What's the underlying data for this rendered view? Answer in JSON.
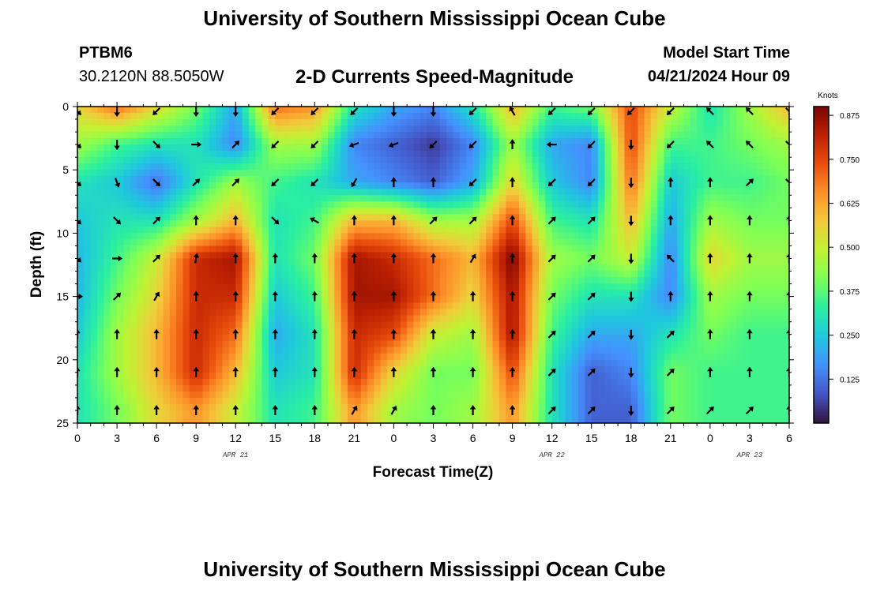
{
  "header": {
    "title": "University of Southern Mississippi Ocean Cube",
    "station_id": "PTBM6",
    "station_coords": "30.2120N  88.5050W",
    "subtitle": "2-D Currents Speed-Magnitude",
    "model_start_label": "Model Start Time",
    "model_start_value": "04/21/2024 Hour 09"
  },
  "footer": {
    "title": "University of Southern Mississippi Ocean Cube"
  },
  "chart_data": {
    "type": "heatmap",
    "title": "2-D Currents Speed-Magnitude",
    "xlabel": "Forecast Time(Z)",
    "ylabel": "Depth (ft)",
    "x_hours_range": [
      0,
      54
    ],
    "x_ticks": [
      {
        "hour": 0,
        "label": "0"
      },
      {
        "hour": 3,
        "label": "3"
      },
      {
        "hour": 6,
        "label": "6"
      },
      {
        "hour": 9,
        "label": "9"
      },
      {
        "hour": 12,
        "label": "12"
      },
      {
        "hour": 15,
        "label": "15"
      },
      {
        "hour": 18,
        "label": "18"
      },
      {
        "hour": 21,
        "label": "21"
      },
      {
        "hour": 24,
        "label": "0"
      },
      {
        "hour": 27,
        "label": "3"
      },
      {
        "hour": 30,
        "label": "6"
      },
      {
        "hour": 33,
        "label": "9"
      },
      {
        "hour": 36,
        "label": "12"
      },
      {
        "hour": 39,
        "label": "15"
      },
      {
        "hour": 42,
        "label": "18"
      },
      {
        "hour": 45,
        "label": "21"
      },
      {
        "hour": 48,
        "label": "0"
      },
      {
        "hour": 51,
        "label": "3"
      },
      {
        "hour": 54,
        "label": "6"
      }
    ],
    "date_labels": [
      {
        "hour": 12,
        "label": "APR 21"
      },
      {
        "hour": 36,
        "label": "APR 22"
      },
      {
        "hour": 51,
        "label": "APR 23"
      }
    ],
    "y_range": [
      0,
      25
    ],
    "y_ticks": [
      0,
      5,
      10,
      15,
      20,
      25
    ],
    "colorbar": {
      "label": "Knots",
      "range": [
        0,
        0.9
      ],
      "ticks": [
        "0.875",
        "0.750",
        "0.625",
        "0.500",
        "0.375",
        "0.250",
        "0.125"
      ],
      "tick_values": [
        0.875,
        0.75,
        0.625,
        0.5,
        0.375,
        0.25,
        0.125
      ],
      "colormap": [
        "#30123b",
        "#4454c4",
        "#4490fe",
        "#1fc8de",
        "#29efa2",
        "#7dff56",
        "#c1f334",
        "#f1ca3a",
        "#fe922a",
        "#ea4f0d",
        "#be2102",
        "#7a0403"
      ]
    },
    "arrow_depths": [
      0,
      3,
      6,
      9,
      12,
      15,
      18,
      21,
      24
    ],
    "arrow_hours": [
      0,
      3,
      6,
      9,
      12,
      15,
      18,
      21,
      24,
      27,
      30,
      33,
      36,
      39,
      42,
      45,
      48,
      51,
      54
    ],
    "speed_field": [
      {
        "hour": 0,
        "speeds_by_depth": [
          0.55,
          0.45,
          0.3,
          0.25,
          0.22,
          0.22,
          0.25,
          0.3,
          0.3
        ]
      },
      {
        "hour": 3,
        "speeds_by_depth": [
          0.7,
          0.35,
          0.25,
          0.3,
          0.35,
          0.4,
          0.45,
          0.45,
          0.4
        ]
      },
      {
        "hour": 6,
        "speeds_by_depth": [
          0.55,
          0.3,
          0.12,
          0.3,
          0.5,
          0.55,
          0.6,
          0.6,
          0.55
        ]
      },
      {
        "hour": 9,
        "speeds_by_depth": [
          0.4,
          0.3,
          0.3,
          0.45,
          0.8,
          0.8,
          0.8,
          0.8,
          0.65
        ]
      },
      {
        "hour": 12,
        "speeds_by_depth": [
          0.2,
          0.15,
          0.45,
          0.6,
          0.85,
          0.8,
          0.7,
          0.6,
          0.5
        ]
      },
      {
        "hour": 15,
        "speeds_by_depth": [
          0.7,
          0.45,
          0.35,
          0.3,
          0.3,
          0.25,
          0.2,
          0.25,
          0.3
        ]
      },
      {
        "hour": 18,
        "speeds_by_depth": [
          0.65,
          0.45,
          0.3,
          0.35,
          0.4,
          0.35,
          0.3,
          0.3,
          0.35
        ]
      },
      {
        "hour": 21,
        "speeds_by_depth": [
          0.3,
          0.15,
          0.2,
          0.6,
          0.85,
          0.85,
          0.8,
          0.8,
          0.65
        ]
      },
      {
        "hour": 24,
        "speeds_by_depth": [
          0.2,
          0.1,
          0.15,
          0.6,
          0.8,
          0.85,
          0.75,
          0.55,
          0.45
        ]
      },
      {
        "hour": 27,
        "speeds_by_depth": [
          0.15,
          0.05,
          0.1,
          0.45,
          0.7,
          0.7,
          0.5,
          0.4,
          0.4
        ]
      },
      {
        "hour": 30,
        "speeds_by_depth": [
          0.3,
          0.15,
          0.2,
          0.45,
          0.6,
          0.55,
          0.45,
          0.4,
          0.45
        ]
      },
      {
        "hour": 33,
        "speeds_by_depth": [
          0.6,
          0.45,
          0.55,
          0.75,
          0.9,
          0.85,
          0.85,
          0.75,
          0.65
        ]
      },
      {
        "hour": 36,
        "speeds_by_depth": [
          0.35,
          0.2,
          0.25,
          0.35,
          0.45,
          0.4,
          0.35,
          0.3,
          0.3
        ]
      },
      {
        "hour": 39,
        "speeds_by_depth": [
          0.4,
          0.15,
          0.15,
          0.3,
          0.4,
          0.3,
          0.2,
          0.1,
          0.1
        ]
      },
      {
        "hour": 42,
        "speeds_by_depth": [
          0.75,
          0.75,
          0.7,
          0.6,
          0.5,
          0.3,
          0.2,
          0.15,
          0.1
        ]
      },
      {
        "hour": 45,
        "speeds_by_depth": [
          0.5,
          0.35,
          0.25,
          0.2,
          0.15,
          0.15,
          0.3,
          0.4,
          0.4
        ]
      },
      {
        "hour": 48,
        "speeds_by_depth": [
          0.3,
          0.35,
          0.35,
          0.45,
          0.55,
          0.45,
          0.4,
          0.35,
          0.35
        ]
      },
      {
        "hour": 51,
        "speeds_by_depth": [
          0.45,
          0.4,
          0.35,
          0.4,
          0.45,
          0.4,
          0.35,
          0.35,
          0.35
        ]
      },
      {
        "hour": 54,
        "speeds_by_depth": [
          0.6,
          0.45,
          0.4,
          0.4,
          0.45,
          0.4,
          0.35,
          0.35,
          0.35
        ]
      }
    ],
    "direction_field": [
      {
        "hour": 0,
        "dirs_by_depth": [
          135,
          135,
          135,
          135,
          135,
          90,
          0,
          0,
          0
        ]
      },
      {
        "hour": 3,
        "dirs_by_depth": [
          180,
          180,
          160,
          135,
          90,
          45,
          0,
          0,
          0
        ]
      },
      {
        "hour": 6,
        "dirs_by_depth": [
          225,
          135,
          135,
          45,
          45,
          30,
          0,
          0,
          0
        ]
      },
      {
        "hour": 9,
        "dirs_by_depth": [
          180,
          90,
          45,
          0,
          10,
          0,
          0,
          0,
          0
        ]
      },
      {
        "hour": 12,
        "dirs_by_depth": [
          180,
          45,
          45,
          0,
          0,
          0,
          0,
          0,
          0
        ]
      },
      {
        "hour": 15,
        "dirs_by_depth": [
          225,
          225,
          225,
          135,
          0,
          0,
          0,
          0,
          0
        ]
      },
      {
        "hour": 18,
        "dirs_by_depth": [
          225,
          225,
          225,
          300,
          0,
          0,
          0,
          0,
          0
        ]
      },
      {
        "hour": 21,
        "dirs_by_depth": [
          225,
          250,
          210,
          0,
          0,
          0,
          0,
          0,
          30
        ]
      },
      {
        "hour": 24,
        "dirs_by_depth": [
          180,
          250,
          0,
          0,
          0,
          0,
          0,
          0,
          30
        ]
      },
      {
        "hour": 27,
        "dirs_by_depth": [
          180,
          225,
          0,
          45,
          0,
          0,
          0,
          0,
          0
        ]
      },
      {
        "hour": 30,
        "dirs_by_depth": [
          225,
          225,
          225,
          45,
          30,
          0,
          0,
          0,
          0
        ]
      },
      {
        "hour": 33,
        "dirs_by_depth": [
          330,
          0,
          0,
          0,
          0,
          0,
          0,
          0,
          0
        ]
      },
      {
        "hour": 36,
        "dirs_by_depth": [
          225,
          270,
          225,
          45,
          45,
          45,
          45,
          45,
          45
        ]
      },
      {
        "hour": 39,
        "dirs_by_depth": [
          225,
          225,
          225,
          45,
          45,
          45,
          45,
          45,
          45
        ]
      },
      {
        "hour": 42,
        "dirs_by_depth": [
          225,
          180,
          180,
          180,
          180,
          180,
          180,
          180,
          180
        ]
      },
      {
        "hour": 45,
        "dirs_by_depth": [
          225,
          225,
          0,
          0,
          315,
          0,
          45,
          45,
          45
        ]
      },
      {
        "hour": 48,
        "dirs_by_depth": [
          315,
          315,
          0,
          0,
          0,
          0,
          0,
          0,
          45
        ]
      },
      {
        "hour": 51,
        "dirs_by_depth": [
          315,
          315,
          45,
          0,
          0,
          0,
          0,
          0,
          45
        ]
      },
      {
        "hour": 54,
        "dirs_by_depth": [
          135,
          135,
          135,
          0,
          0,
          0,
          0,
          0,
          0
        ]
      }
    ]
  }
}
